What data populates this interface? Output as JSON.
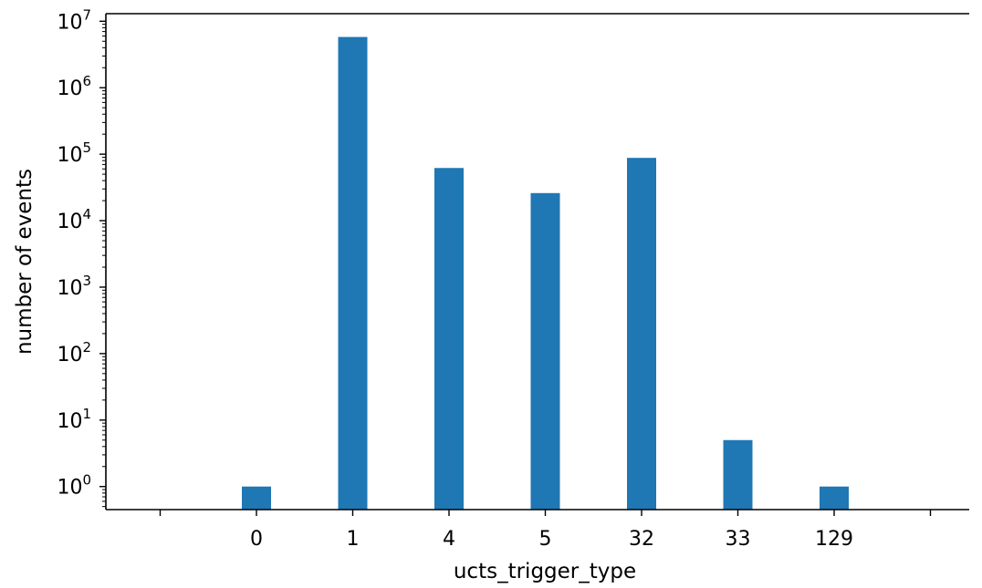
{
  "chart_data": {
    "type": "bar",
    "title": "",
    "xlabel": "ucts_trigger_type",
    "ylabel": "number of events",
    "categories": [
      "0",
      "1",
      "4",
      "5",
      "32",
      "33",
      "129"
    ],
    "values": [
      1,
      5800000,
      62000,
      26000,
      88000,
      5,
      1
    ],
    "yscale": "log",
    "ylim": [
      0.45,
      13000000
    ],
    "ytick_labels": [
      {
        "base": "10",
        "exp": "0"
      },
      {
        "base": "10",
        "exp": "1"
      },
      {
        "base": "10",
        "exp": "2"
      },
      {
        "base": "10",
        "exp": "3"
      },
      {
        "base": "10",
        "exp": "4"
      },
      {
        "base": "10",
        "exp": "5"
      },
      {
        "base": "10",
        "exp": "6"
      },
      {
        "base": "10",
        "exp": "7"
      }
    ],
    "bar_color": "#1f77b4",
    "grid": false,
    "legend": "none"
  }
}
